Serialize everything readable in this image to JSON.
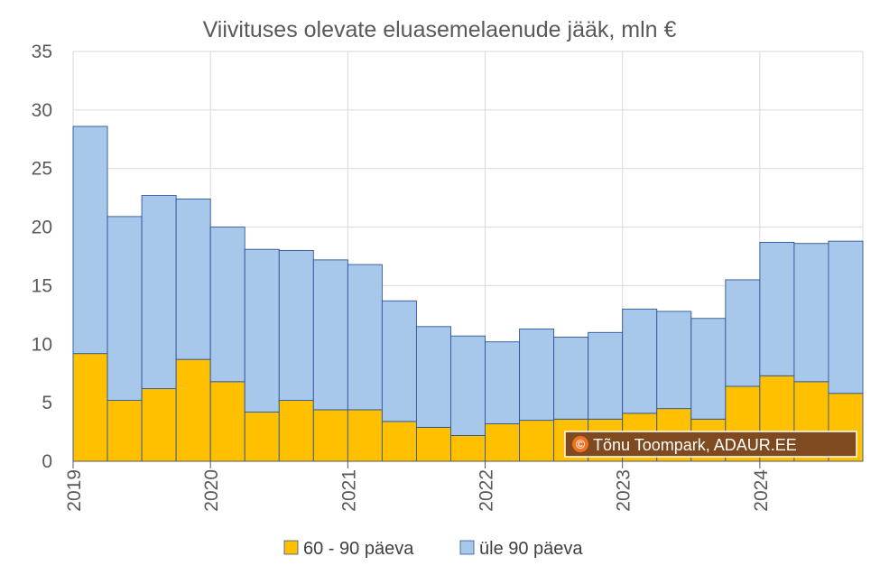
{
  "chart_data": {
    "type": "bar",
    "stacked": true,
    "title": "Viivituses olevate eluasemelaenude jääk, mln €",
    "ylim": [
      0,
      35
    ],
    "yticks": [
      0,
      5,
      10,
      15,
      20,
      25,
      30,
      35
    ],
    "year_labels": [
      "2019",
      "2020",
      "2021",
      "2022",
      "2023",
      "2024"
    ],
    "year_start_index": [
      0,
      4,
      8,
      12,
      16,
      20
    ],
    "series": [
      {
        "name": "60 - 90 päeva",
        "color": "#ffc000",
        "values": [
          9.2,
          5.2,
          6.2,
          8.7,
          6.8,
          4.2,
          5.2,
          4.4,
          4.4,
          3.4,
          2.9,
          2.2,
          3.2,
          3.5,
          3.6,
          3.6,
          4.1,
          4.5,
          3.6,
          6.4,
          7.3,
          6.8,
          5.8
        ]
      },
      {
        "name": "üle 90 päeva",
        "color": "#a7c8ea",
        "values": [
          19.4,
          15.7,
          16.5,
          13.7,
          13.2,
          13.9,
          12.8,
          12.8,
          12.4,
          10.3,
          8.6,
          8.5,
          7.0,
          7.8,
          7.0,
          7.4,
          8.9,
          8.3,
          8.6,
          9.1,
          11.4,
          11.8,
          13.0
        ]
      }
    ],
    "grid": true,
    "legend": "bottom"
  },
  "watermark": "© Tõnu Toompark, ADAUR.EE"
}
